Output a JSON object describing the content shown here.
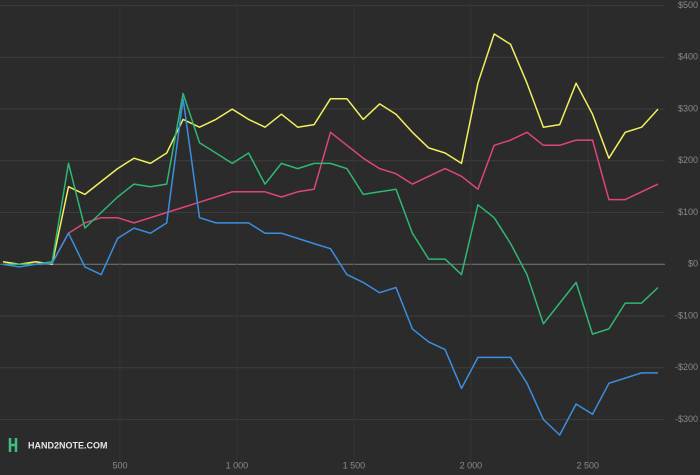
{
  "chart_data": {
    "type": "line",
    "watermark": "HAND2NOTE.COM",
    "x": [
      0,
      70,
      140,
      210,
      280,
      350,
      420,
      490,
      560,
      630,
      700,
      770,
      840,
      910,
      980,
      1050,
      1120,
      1190,
      1260,
      1330,
      1400,
      1470,
      1540,
      1610,
      1680,
      1750,
      1820,
      1890,
      1960,
      2030,
      2100,
      2170,
      2240,
      2310,
      2380,
      2450,
      2520,
      2590,
      2660,
      2730,
      2800
    ],
    "xlim": [
      0,
      2830
    ],
    "xticks": [
      500,
      {
        "value": 1000,
        "label": "1 000"
      },
      {
        "value": 1500,
        "label": "1 500"
      },
      {
        "value": 2000,
        "label": "2 000"
      },
      {
        "value": 2500,
        "label": "2 500"
      }
    ],
    "ylim": [
      -388,
      505
    ],
    "yticks": [
      {
        "value": 500,
        "label": "$500"
      },
      {
        "value": 400,
        "label": "$400"
      },
      {
        "value": 300,
        "label": "$300"
      },
      {
        "value": 200,
        "label": "$200"
      },
      {
        "value": 100,
        "label": "$100"
      },
      {
        "value": 0,
        "label": "$0"
      },
      {
        "value": -100,
        "label": "-$100"
      },
      {
        "value": -200,
        "label": "-$200"
      },
      {
        "value": -300,
        "label": "-$300"
      }
    ],
    "grid": true,
    "series": [
      {
        "color": "#f2f05e",
        "values": [
          5,
          0,
          5,
          0,
          150,
          135,
          160,
          185,
          205,
          195,
          215,
          280,
          265,
          280,
          300,
          280,
          265,
          290,
          265,
          270,
          320,
          320,
          280,
          310,
          290,
          255,
          225,
          215,
          195,
          350,
          445,
          425,
          350,
          265,
          270,
          350,
          290,
          205,
          255,
          265,
          300
        ]
      },
      {
        "color": "#e0457a",
        "values": [
          0,
          0,
          0,
          2,
          60,
          80,
          90,
          90,
          80,
          90,
          100,
          110,
          120,
          130,
          140,
          140,
          140,
          130,
          140,
          145,
          255,
          230,
          205,
          185,
          175,
          155,
          170,
          185,
          170,
          145,
          230,
          240,
          255,
          230,
          230,
          240,
          240,
          125,
          125,
          140,
          155
        ]
      },
      {
        "color": "#2fb871",
        "values": [
          0,
          0,
          0,
          5,
          195,
          70,
          100,
          130,
          155,
          150,
          155,
          330,
          235,
          215,
          195,
          215,
          155,
          195,
          185,
          195,
          195,
          185,
          135,
          140,
          145,
          60,
          10,
          10,
          -20,
          115,
          90,
          40,
          -20,
          -115,
          -75,
          -35,
          -135,
          -125,
          -75,
          -75,
          -45
        ]
      },
      {
        "color": "#3b8fe0",
        "values": [
          0,
          -5,
          0,
          2,
          60,
          -5,
          -20,
          50,
          70,
          60,
          80,
          320,
          90,
          80,
          80,
          80,
          60,
          60,
          50,
          40,
          30,
          -20,
          -35,
          -55,
          -45,
          -125,
          -150,
          -165,
          -240,
          -180,
          -180,
          -180,
          -230,
          -300,
          -330,
          -270,
          -290,
          -230,
          -220,
          -210,
          -210
        ]
      }
    ]
  }
}
